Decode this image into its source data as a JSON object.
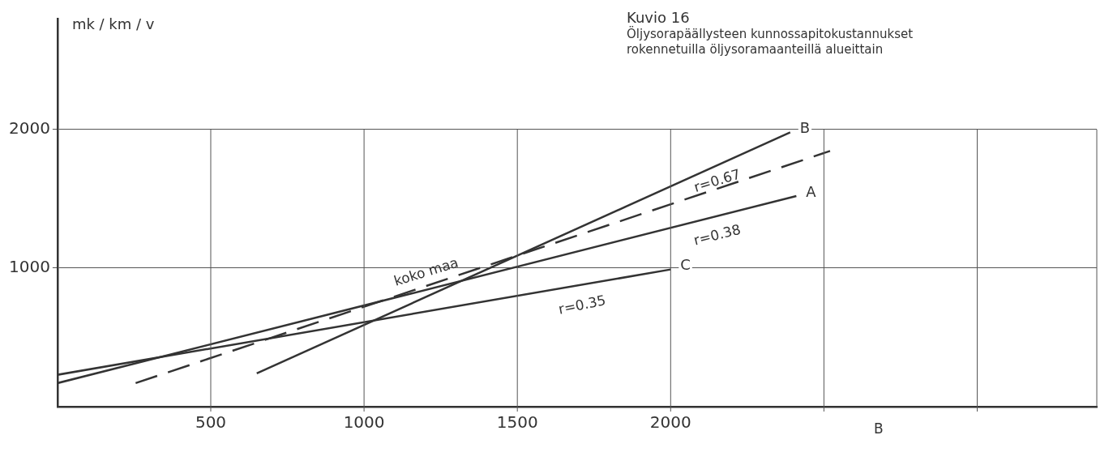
{
  "chart_data": {
    "type": "line",
    "title": "Kuvio 16",
    "subtitle": "Öljysorapäällysteen kunnossapitokustannukset\nrokennetuilla öljysoramaanteillä alueittain",
    "ylabel": "mk / km / v",
    "series": [
      {
        "name": "B",
        "color": "#333333",
        "x": [
          650,
          2390
        ],
        "values": [
          240,
          1980
        ]
      },
      {
        "name": "A",
        "color": "#333333",
        "x": [
          0,
          2410
        ],
        "values": [
          170,
          1520
        ]
      },
      {
        "name": "C",
        "color": "#333333",
        "x": [
          0,
          2000
        ],
        "values": [
          230,
          990
        ]
      },
      {
        "color": "#333333",
        "x": [
          255,
          2520
        ],
        "values": [
          170,
          1845
        ],
        "line_style": "dashed"
      }
    ],
    "annotations": [
      "koko maa",
      "r=0.67",
      "r=0.38",
      "r=0.35",
      "B"
    ],
    "xlim": [
      0,
      3390
    ],
    "ylim": [
      0,
      2800
    ],
    "xticks": [
      500,
      1000,
      1500,
      2000,
      {
        "value": 2500,
        "label": null
      },
      {
        "value": 3000,
        "label": null
      }
    ],
    "yticks": [
      1000,
      2000
    ],
    "grid": true,
    "legend": false,
    "marker": "none",
    "line_style": "solid"
  }
}
